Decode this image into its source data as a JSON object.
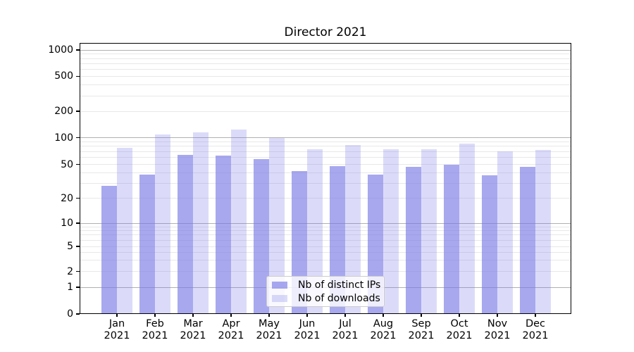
{
  "chart_data": {
    "type": "bar",
    "title": "Director 2021",
    "categories": [
      "Jan 2021",
      "Feb 2021",
      "Mar 2021",
      "Apr 2021",
      "May 2021",
      "Jun 2021",
      "Jul 2021",
      "Aug 2021",
      "Sep 2021",
      "Oct 2021",
      "Nov 2021",
      "Dec 2021"
    ],
    "x_tick_lines": [
      {
        "month": "Jan",
        "year": "2021"
      },
      {
        "month": "Feb",
        "year": "2021"
      },
      {
        "month": "Mar",
        "year": "2021"
      },
      {
        "month": "Apr",
        "year": "2021"
      },
      {
        "month": "May",
        "year": "2021"
      },
      {
        "month": "Jun",
        "year": "2021"
      },
      {
        "month": "Jul",
        "year": "2021"
      },
      {
        "month": "Aug",
        "year": "2021"
      },
      {
        "month": "Sep",
        "year": "2021"
      },
      {
        "month": "Oct",
        "year": "2021"
      },
      {
        "month": "Nov",
        "year": "2021"
      },
      {
        "month": "Dec",
        "year": "2021"
      }
    ],
    "series": [
      {
        "name": "Nb of distinct IPs",
        "base_color": "#7a7ae7",
        "alpha": 0.65,
        "values": [
          28,
          38,
          64,
          63,
          57,
          42,
          48,
          38,
          47,
          50,
          37,
          47
        ]
      },
      {
        "name": "Nb of downloads",
        "base_color": "#7a7ae7",
        "alpha": 0.27,
        "values": [
          77,
          108,
          115,
          124,
          100,
          74,
          82,
          74,
          74,
          85,
          70,
          73
        ]
      }
    ],
    "yscale": "symlog",
    "y_ticks": [
      "0",
      "1",
      "2",
      "5",
      "10",
      "20",
      "50",
      "100",
      "200",
      "500",
      "1000"
    ],
    "y_minor_gridlines": [
      2,
      3,
      4,
      5,
      6,
      7,
      8,
      9,
      20,
      30,
      40,
      50,
      60,
      70,
      80,
      90,
      200,
      300,
      400,
      500,
      600,
      700,
      800,
      900
    ],
    "y_major_gridlines": [
      1,
      10,
      100,
      1000
    ],
    "ylim": [
      0,
      1400
    ],
    "grid": true,
    "legend_position": "lower center",
    "colors": {
      "minor_grid": "#e8e8e8",
      "major_grid": "#b0b0b0",
      "spine": "#000000"
    }
  }
}
